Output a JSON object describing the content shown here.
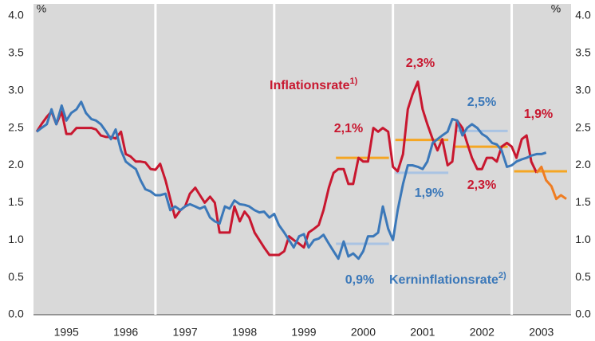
{
  "chart_data": {
    "type": "line",
    "y_unit": "%",
    "xlim": [
      1995,
      2004
    ],
    "xticks": [
      {
        "value": 1995.5,
        "label": "1995"
      },
      {
        "value": 1996.5,
        "label": "1996"
      },
      {
        "value": 1997.5,
        "label": "1997"
      },
      {
        "value": 1998.5,
        "label": "1998"
      },
      {
        "value": 1999.5,
        "label": "1999"
      },
      {
        "value": 2000.5,
        "label": "2000"
      },
      {
        "value": 2001.5,
        "label": "2001"
      },
      {
        "value": 2002.5,
        "label": "2002"
      },
      {
        "value": 2003.5,
        "label": "2003"
      }
    ],
    "ylim": [
      0,
      4
    ],
    "yticks": [
      {
        "value": 0,
        "label": "0.0"
      },
      0.5,
      {
        "value": 1,
        "label": "1.0"
      },
      1.5,
      {
        "value": 2,
        "label": "2.0"
      },
      2.5,
      {
        "value": 3,
        "label": "3.0"
      },
      3.5,
      {
        "value": 4,
        "label": "4.0"
      }
    ],
    "x_dividers": [
      1997,
      1999,
      2001,
      2003
    ],
    "x": [
      1995.0,
      1995.08,
      1995.17,
      1995.25,
      1995.33,
      1995.42,
      1995.5,
      1995.58,
      1995.67,
      1995.75,
      1995.83,
      1995.92,
      1996.0,
      1996.08,
      1996.17,
      1996.25,
      1996.33,
      1996.42,
      1996.5,
      1996.58,
      1996.67,
      1996.75,
      1996.83,
      1996.92,
      1997.0,
      1997.08,
      1997.17,
      1997.25,
      1997.33,
      1997.42,
      1997.5,
      1997.58,
      1997.67,
      1997.75,
      1997.83,
      1997.92,
      1998.0,
      1998.08,
      1998.17,
      1998.25,
      1998.33,
      1998.42,
      1998.5,
      1998.58,
      1998.67,
      1998.75,
      1998.83,
      1998.92,
      1999.0,
      1999.08,
      1999.17,
      1999.25,
      1999.33,
      1999.42,
      1999.5,
      1999.58,
      1999.67,
      1999.75,
      1999.83,
      1999.92,
      2000.0,
      2000.08,
      2000.17,
      2000.25,
      2000.33,
      2000.42,
      2000.5,
      2000.58,
      2000.67,
      2000.75,
      2000.83,
      2000.92,
      2001.0,
      2001.08,
      2001.17,
      2001.25,
      2001.33,
      2001.42,
      2001.5,
      2001.58,
      2001.67,
      2001.75,
      2001.83,
      2001.92,
      2002.0,
      2002.08,
      2002.17,
      2002.25,
      2002.33,
      2002.42,
      2002.5,
      2002.58,
      2002.67,
      2002.75,
      2002.83,
      2002.92,
      2003.0,
      2003.08,
      2003.17,
      2003.25,
      2003.33,
      2003.42,
      2003.5,
      2003.58,
      2003.67,
      2003.75,
      2003.83,
      2003.92
    ],
    "series": [
      {
        "name": "Inflationsrate",
        "footnote": "1)",
        "color": "#c8172f",
        "values": [
          2.45,
          2.55,
          2.65,
          2.72,
          2.55,
          2.72,
          2.42,
          2.42,
          2.5,
          2.5,
          2.5,
          2.5,
          2.48,
          2.4,
          2.38,
          2.38,
          2.36,
          2.45,
          2.15,
          2.12,
          2.05,
          2.05,
          2.04,
          1.95,
          1.94,
          2.02,
          1.8,
          1.55,
          1.3,
          1.4,
          1.45,
          1.62,
          1.7,
          1.6,
          1.5,
          1.58,
          1.5,
          1.1,
          1.1,
          1.1,
          1.45,
          1.25,
          1.38,
          1.3,
          1.1,
          1.0,
          0.9,
          0.8,
          0.8,
          0.8,
          0.85,
          1.05,
          1.0,
          0.95,
          0.9,
          1.1,
          1.15,
          1.2,
          1.4,
          1.7,
          1.9,
          1.95,
          1.95,
          1.75,
          1.75,
          2.1,
          2.05,
          2.05,
          2.5,
          2.45,
          2.5,
          2.45,
          1.98,
          1.92,
          2.15,
          2.75,
          2.95,
          3.12,
          2.75,
          2.55,
          2.35,
          2.2,
          2.35,
          2.0,
          2.05,
          2.6,
          2.5,
          2.3,
          2.1,
          1.95,
          1.95,
          2.1,
          2.1,
          2.05,
          2.25,
          2.3,
          2.25,
          2.1,
          2.35,
          2.4,
          2.05,
          1.9,
          null,
          null,
          null,
          null,
          null,
          null
        ]
      },
      {
        "name": "Kerninflationsrate",
        "footnote": "2)",
        "color": "#3b78b9",
        "values": [
          2.45,
          2.5,
          2.55,
          2.75,
          2.55,
          2.8,
          2.6,
          2.7,
          2.75,
          2.85,
          2.7,
          2.62,
          2.6,
          2.55,
          2.45,
          2.35,
          2.48,
          2.2,
          2.05,
          2.0,
          1.95,
          1.8,
          1.68,
          1.65,
          1.6,
          1.6,
          1.62,
          1.4,
          1.45,
          1.4,
          1.45,
          1.48,
          1.45,
          1.42,
          1.45,
          1.3,
          1.25,
          1.22,
          1.45,
          1.42,
          1.53,
          1.48,
          1.47,
          1.45,
          1.4,
          1.37,
          1.38,
          1.3,
          1.35,
          1.2,
          1.1,
          1.0,
          0.9,
          1.05,
          1.08,
          0.9,
          1.0,
          1.02,
          1.07,
          0.95,
          0.85,
          0.75,
          0.98,
          0.78,
          0.82,
          0.75,
          0.85,
          1.05,
          1.05,
          1.1,
          1.45,
          1.15,
          1.0,
          1.4,
          1.75,
          2.0,
          2.0,
          1.98,
          1.95,
          2.05,
          2.3,
          2.35,
          2.4,
          2.45,
          2.62,
          2.6,
          2.4,
          2.5,
          2.55,
          2.5,
          2.42,
          2.38,
          2.3,
          2.28,
          2.2,
          1.98,
          2.0,
          2.05,
          2.08,
          2.1,
          2.13,
          2.15,
          2.15,
          2.17,
          null,
          null,
          null,
          null
        ]
      },
      {
        "color": "#ef7d22",
        "values": [
          null,
          null,
          null,
          null,
          null,
          null,
          null,
          null,
          null,
          null,
          null,
          null,
          null,
          null,
          null,
          null,
          null,
          null,
          null,
          null,
          null,
          null,
          null,
          null,
          null,
          null,
          null,
          null,
          null,
          null,
          null,
          null,
          null,
          null,
          null,
          null,
          null,
          null,
          null,
          null,
          null,
          null,
          null,
          null,
          null,
          null,
          null,
          null,
          null,
          null,
          null,
          null,
          null,
          null,
          null,
          null,
          null,
          null,
          null,
          null,
          null,
          null,
          null,
          null,
          null,
          null,
          null,
          null,
          null,
          null,
          null,
          null,
          null,
          null,
          null,
          null,
          null,
          null,
          null,
          null,
          null,
          null,
          null,
          null,
          null,
          null,
          null,
          null,
          null,
          null,
          null,
          null,
          null,
          null,
          null,
          null,
          null,
          null,
          null,
          null,
          null,
          1.9,
          1.98,
          1.8,
          1.72,
          1.55,
          1.6,
          1.55
        ]
      }
    ],
    "averages": [
      {
        "x": [
          2000,
          2001
        ],
        "value": 2.1,
        "label": "2,1%",
        "color": "#f5a623",
        "label_color": "#c8172f"
      },
      {
        "x": [
          2001,
          2002
        ],
        "value": 2.34,
        "label": "2,3%",
        "color": "#f5a623",
        "label_color": "#c8172f"
      },
      {
        "x": [
          2002,
          2003
        ],
        "value": 2.25,
        "label": "2,3%",
        "color": "#f5a623",
        "label_color": "#c8172f"
      },
      {
        "x": [
          2003,
          2004
        ],
        "value": 1.92,
        "label": "1,9%",
        "color": "#f5a623",
        "label_color": "#c8172f"
      },
      {
        "x": [
          2000,
          2001
        ],
        "value": 0.95,
        "label": "0,9%",
        "color": "#a9c3e3",
        "label_color": "#3b78b9"
      },
      {
        "x": [
          2001,
          2002
        ],
        "value": 1.9,
        "label": "1,9%",
        "color": "#a9c3e3",
        "label_color": "#3b78b9"
      },
      {
        "x": [
          2002,
          2003
        ],
        "value": 2.46,
        "label": "2,5%",
        "color": "#a9c3e3",
        "label_color": "#3b78b9"
      }
    ]
  }
}
